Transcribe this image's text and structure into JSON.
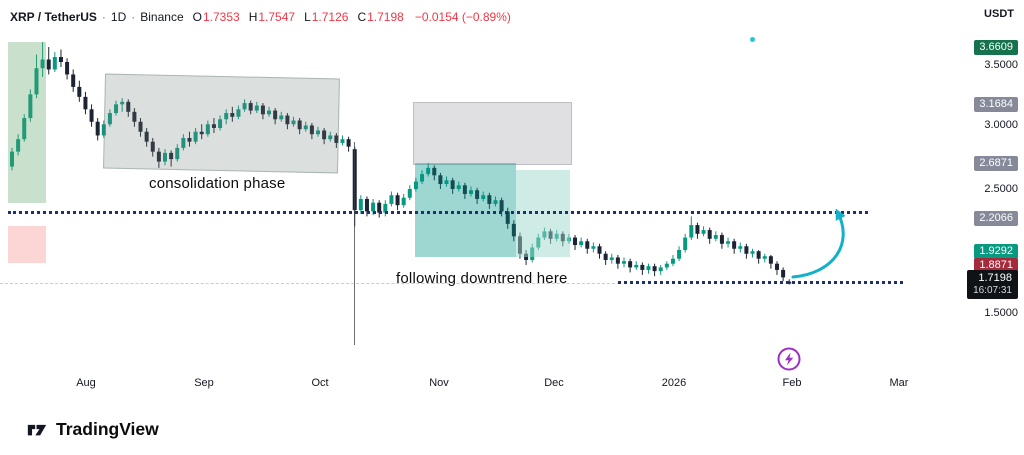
{
  "header": {
    "symbol": "XRP / TetherUS",
    "separator": "·",
    "interval": "1D",
    "exchange": "Binance",
    "ohlc": {
      "o_label": "O",
      "o_value": "1.7353",
      "h_label": "H",
      "h_value": "1.7547",
      "l_label": "L",
      "l_value": "1.7126",
      "c_label": "C",
      "c_value": "1.7198",
      "change": "−0.0154 (−0.89%)"
    }
  },
  "price_axis": {
    "currency": "USDT",
    "labels": [
      {
        "value": "3.6609",
        "kind": "green-dark"
      },
      {
        "value": "3.5000",
        "kind": "plain"
      },
      {
        "value": "3.1684",
        "kind": "gray"
      },
      {
        "value": "3.0000",
        "kind": "plain"
      },
      {
        "value": "2.6871",
        "kind": "gray"
      },
      {
        "value": "2.5000",
        "kind": "plain"
      },
      {
        "value": "2.2066",
        "kind": "gray"
      },
      {
        "value": "1.9292",
        "kind": "green"
      },
      {
        "value": "1.8871",
        "kind": "red"
      },
      {
        "value": "1.7198",
        "kind": "last",
        "countdown": "16:07:31"
      },
      {
        "value": "1.5000",
        "kind": "plain"
      }
    ]
  },
  "time_axis": {
    "labels": [
      "Aug",
      "Sep",
      "Oct",
      "Nov",
      "Dec",
      "2026",
      "Feb",
      "Mar"
    ]
  },
  "footer": {
    "brand": "TradingView"
  },
  "colors": {
    "up": "#089981",
    "down": "#1c2333",
    "arrow": "#12b0c9",
    "level_line": "#202e72",
    "lightning": "#9b30c1",
    "badge_green": "#089981",
    "badge_green_dark": "#15724d",
    "badge_gray": "#85899a",
    "badge_red": "#a52a3a",
    "badge_last": "#0f1318",
    "value_red": "#f23645"
  },
  "chart_data": {
    "type": "candlestick",
    "title": "XRP / TetherUS · 1D · Binance",
    "x_ticks": [
      "Aug",
      "Sep",
      "Oct",
      "Nov",
      "Dec",
      "2026",
      "Feb",
      "Mar"
    ],
    "y_ticks": [
      1.5,
      2.5,
      3.0,
      3.5
    ],
    "y_range": [
      1.45,
      3.75
    ],
    "grid": false,
    "last": {
      "open": 1.7353,
      "high": 1.7547,
      "low": 1.7126,
      "close": 1.7198,
      "change": -0.0154,
      "change_pct": -0.89
    },
    "levels": [
      {
        "price": 3.6609,
        "label": "cycle-high"
      },
      {
        "price": 3.1684,
        "label": "supply-zone-top"
      },
      {
        "price": 2.6871,
        "label": "supply-zone-bottom"
      },
      {
        "price": 2.2066,
        "label": "dotted-resistance"
      },
      {
        "price": 1.9292,
        "label": "demand-zone-bottom"
      },
      {
        "price": 1.8871,
        "label": "swing-low"
      },
      {
        "price": 1.7198,
        "label": "last-price"
      }
    ],
    "annotations": [
      {
        "text": "consolidation phase"
      },
      {
        "text": "following downtrend here"
      }
    ],
    "colors": {
      "up": "#089981",
      "down": "#1c2333"
    },
    "candles": [
      [
        2.66,
        2.81,
        2.63,
        2.78
      ],
      [
        2.78,
        2.92,
        2.75,
        2.88
      ],
      [
        2.88,
        3.08,
        2.86,
        3.05
      ],
      [
        3.05,
        3.28,
        3.02,
        3.24
      ],
      [
        3.24,
        3.56,
        3.21,
        3.45
      ],
      [
        3.45,
        3.66,
        3.38,
        3.52
      ],
      [
        3.52,
        3.62,
        3.4,
        3.44
      ],
      [
        3.44,
        3.58,
        3.42,
        3.54
      ],
      [
        3.54,
        3.6,
        3.46,
        3.5
      ],
      [
        3.5,
        3.53,
        3.36,
        3.4
      ],
      [
        3.4,
        3.44,
        3.26,
        3.3
      ],
      [
        3.3,
        3.35,
        3.18,
        3.22
      ],
      [
        3.22,
        3.26,
        3.08,
        3.12
      ],
      [
        3.12,
        3.16,
        2.98,
        3.02
      ],
      [
        3.02,
        3.05,
        2.87,
        2.91
      ],
      [
        2.91,
        3.03,
        2.89,
        3.0
      ],
      [
        3.0,
        3.12,
        2.98,
        3.09
      ],
      [
        3.09,
        3.19,
        3.07,
        3.16
      ],
      [
        3.16,
        3.21,
        3.1,
        3.18
      ],
      [
        3.18,
        3.2,
        3.06,
        3.1
      ],
      [
        3.1,
        3.13,
        2.98,
        3.02
      ],
      [
        3.02,
        3.05,
        2.9,
        2.94
      ],
      [
        2.94,
        2.97,
        2.82,
        2.86
      ],
      [
        2.86,
        2.89,
        2.74,
        2.78
      ],
      [
        2.78,
        2.81,
        2.65,
        2.7
      ],
      [
        2.7,
        2.8,
        2.67,
        2.77
      ],
      [
        2.77,
        2.79,
        2.66,
        2.72
      ],
      [
        2.72,
        2.84,
        2.7,
        2.81
      ],
      [
        2.81,
        2.92,
        2.79,
        2.89
      ],
      [
        2.89,
        2.94,
        2.82,
        2.86
      ],
      [
        2.86,
        2.97,
        2.84,
        2.94
      ],
      [
        2.94,
        3.0,
        2.88,
        2.92
      ],
      [
        2.92,
        3.03,
        2.9,
        3.0
      ],
      [
        3.0,
        3.05,
        2.93,
        2.97
      ],
      [
        2.97,
        3.07,
        2.95,
        3.04
      ],
      [
        3.04,
        3.12,
        3.0,
        3.09
      ],
      [
        3.09,
        3.14,
        3.02,
        3.06
      ],
      [
        3.06,
        3.15,
        3.04,
        3.12
      ],
      [
        3.12,
        3.2,
        3.1,
        3.17
      ],
      [
        3.17,
        3.19,
        3.08,
        3.11
      ],
      [
        3.11,
        3.18,
        3.09,
        3.15
      ],
      [
        3.15,
        3.17,
        3.04,
        3.08
      ],
      [
        3.08,
        3.14,
        3.06,
        3.11
      ],
      [
        3.11,
        3.13,
        3.0,
        3.04
      ],
      [
        3.04,
        3.1,
        3.02,
        3.07
      ],
      [
        3.07,
        3.09,
        2.96,
        3.0
      ],
      [
        3.0,
        3.06,
        2.98,
        3.03
      ],
      [
        3.03,
        3.05,
        2.92,
        2.96
      ],
      [
        2.96,
        3.02,
        2.94,
        2.99
      ],
      [
        2.99,
        3.01,
        2.88,
        2.92
      ],
      [
        2.92,
        2.98,
        2.9,
        2.95
      ],
      [
        2.95,
        2.97,
        2.84,
        2.88
      ],
      [
        2.88,
        2.94,
        2.86,
        2.91
      ],
      [
        2.91,
        2.93,
        2.81,
        2.85
      ],
      [
        2.85,
        2.91,
        2.83,
        2.88
      ],
      [
        2.88,
        2.9,
        2.78,
        2.82
      ],
      [
        2.8,
        2.82,
        2.18,
        2.31
      ],
      [
        2.31,
        2.43,
        2.28,
        2.4
      ],
      [
        2.4,
        2.42,
        2.26,
        2.3
      ],
      [
        2.3,
        2.4,
        2.27,
        2.37
      ],
      [
        2.37,
        2.39,
        2.25,
        2.29
      ],
      [
        2.29,
        2.39,
        2.26,
        2.36
      ],
      [
        2.36,
        2.46,
        2.34,
        2.43
      ],
      [
        2.43,
        2.45,
        2.31,
        2.35
      ],
      [
        2.35,
        2.44,
        2.33,
        2.41
      ],
      [
        2.41,
        2.51,
        2.39,
        2.48
      ],
      [
        2.48,
        2.57,
        2.46,
        2.54
      ],
      [
        2.54,
        2.63,
        2.52,
        2.6
      ],
      [
        2.6,
        2.69,
        2.58,
        2.65
      ],
      [
        2.65,
        2.67,
        2.55,
        2.59
      ],
      [
        2.59,
        2.61,
        2.48,
        2.52
      ],
      [
        2.52,
        2.58,
        2.5,
        2.55
      ],
      [
        2.55,
        2.57,
        2.44,
        2.48
      ],
      [
        2.48,
        2.54,
        2.46,
        2.51
      ],
      [
        2.51,
        2.53,
        2.4,
        2.44
      ],
      [
        2.44,
        2.5,
        2.42,
        2.47
      ],
      [
        2.47,
        2.49,
        2.36,
        2.4
      ],
      [
        2.4,
        2.46,
        2.38,
        2.43
      ],
      [
        2.43,
        2.45,
        2.32,
        2.36
      ],
      [
        2.36,
        2.42,
        2.34,
        2.39
      ],
      [
        2.39,
        2.41,
        2.26,
        2.3
      ],
      [
        2.3,
        2.33,
        2.16,
        2.2
      ],
      [
        2.2,
        2.23,
        2.06,
        2.1
      ],
      [
        2.1,
        2.13,
        1.92,
        1.96
      ],
      [
        1.96,
        1.99,
        1.87,
        1.91
      ],
      [
        1.91,
        2.04,
        1.89,
        2.01
      ],
      [
        2.01,
        2.12,
        1.99,
        2.09
      ],
      [
        2.09,
        2.17,
        2.07,
        2.14
      ],
      [
        2.14,
        2.16,
        2.04,
        2.08
      ],
      [
        2.08,
        2.15,
        2.06,
        2.12
      ],
      [
        2.12,
        2.14,
        2.02,
        2.06
      ],
      [
        2.06,
        2.12,
        2.04,
        2.09
      ],
      [
        2.09,
        2.11,
        1.99,
        2.03
      ],
      [
        2.03,
        2.09,
        2.01,
        2.06
      ],
      [
        2.06,
        2.08,
        1.96,
        2.0
      ],
      [
        2.0,
        2.05,
        1.97,
        2.02
      ],
      [
        2.02,
        2.04,
        1.92,
        1.96
      ],
      [
        1.96,
        1.98,
        1.87,
        1.91
      ],
      [
        1.91,
        1.96,
        1.88,
        1.93
      ],
      [
        1.93,
        1.95,
        1.84,
        1.88
      ],
      [
        1.88,
        1.93,
        1.85,
        1.9
      ],
      [
        1.9,
        1.92,
        1.81,
        1.85
      ],
      [
        1.85,
        1.9,
        1.83,
        1.87
      ],
      [
        1.87,
        1.89,
        1.79,
        1.83
      ],
      [
        1.83,
        1.88,
        1.8,
        1.86
      ],
      [
        1.86,
        1.88,
        1.78,
        1.82
      ],
      [
        1.82,
        1.87,
        1.79,
        1.85
      ],
      [
        1.85,
        1.9,
        1.83,
        1.88
      ],
      [
        1.88,
        1.95,
        1.86,
        1.92
      ],
      [
        1.92,
        2.02,
        1.9,
        1.99
      ],
      [
        1.99,
        2.12,
        1.97,
        2.09
      ],
      [
        2.09,
        2.26,
        2.07,
        2.19
      ],
      [
        2.19,
        2.21,
        2.08,
        2.12
      ],
      [
        2.12,
        2.18,
        2.1,
        2.15
      ],
      [
        2.15,
        2.17,
        2.04,
        2.08
      ],
      [
        2.08,
        2.14,
        2.06,
        2.11
      ],
      [
        2.11,
        2.13,
        2.0,
        2.04
      ],
      [
        2.04,
        2.09,
        2.01,
        2.06
      ],
      [
        2.06,
        2.08,
        1.96,
        2.0
      ],
      [
        2.0,
        2.05,
        1.97,
        2.02
      ],
      [
        2.02,
        2.04,
        1.92,
        1.96
      ],
      [
        1.96,
        2.0,
        1.93,
        1.98
      ],
      [
        1.98,
        1.99,
        1.88,
        1.92
      ],
      [
        1.92,
        1.96,
        1.89,
        1.94
      ],
      [
        1.94,
        1.95,
        1.84,
        1.88
      ],
      [
        1.88,
        1.9,
        1.79,
        1.83
      ],
      [
        1.83,
        1.85,
        1.74,
        1.77
      ],
      [
        1.7353,
        1.7547,
        1.7126,
        1.7198
      ]
    ]
  }
}
